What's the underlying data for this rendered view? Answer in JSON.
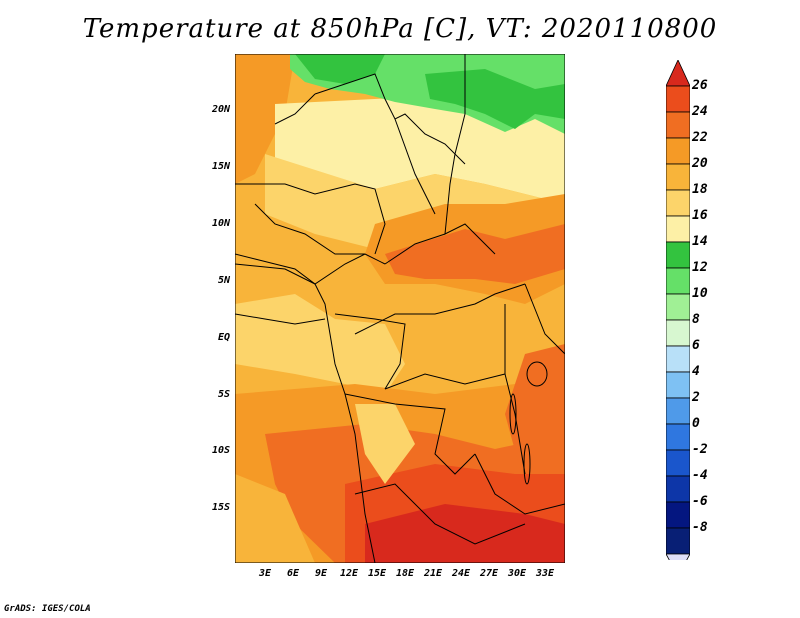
{
  "title": "Temperature at 850hPa [C], VT: 2020110800",
  "credit": "GrADS: IGES/COLA",
  "map": {
    "lat_labels": [
      "20N",
      "15N",
      "10N",
      "5N",
      "EQ",
      "5S",
      "10S",
      "15S"
    ],
    "lon_labels": [
      "3E",
      "6E",
      "9E",
      "12E",
      "15E",
      "18E",
      "21E",
      "24E",
      "27E",
      "30E",
      "33E"
    ]
  },
  "colorbar": {
    "labels": [
      "26",
      "24",
      "22",
      "20",
      "18",
      "16",
      "14",
      "12",
      "10",
      "8",
      "6",
      "4",
      "2",
      "0",
      "-2",
      "-4",
      "-6",
      "-8"
    ],
    "colors": [
      "#d8291d",
      "#eb4d1c",
      "#f06e22",
      "#f59a26",
      "#f8b43a",
      "#fcd46a",
      "#fdf0a6",
      "#33c33f",
      "#65e068",
      "#a0f095",
      "#d7f7d0",
      "#b8e0f8",
      "#7ec1f3",
      "#4f9ae9",
      "#2f77e0",
      "#1a56cc",
      "#0d36a8",
      "#041680",
      "#081f75",
      "#dfdff8"
    ]
  }
}
